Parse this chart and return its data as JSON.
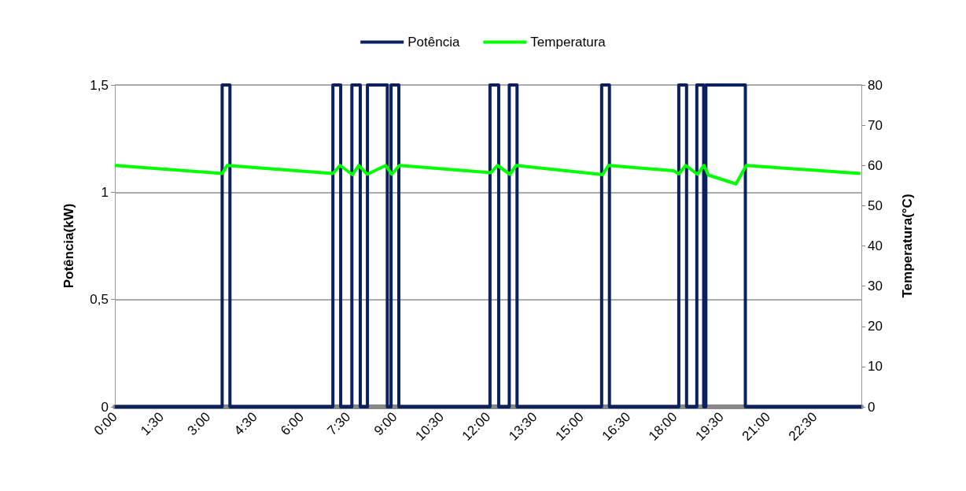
{
  "chart_data": {
    "type": "line",
    "ylabel": "Potência(kW)",
    "y2label": "Temperatura(°C)",
    "xlim": [
      0,
      24
    ],
    "xticks": [
      {
        "value": 0,
        "label": "0:00"
      },
      {
        "value": 1.5,
        "label": "1:30"
      },
      {
        "value": 3,
        "label": "3:00"
      },
      {
        "value": 4.5,
        "label": "4:30"
      },
      {
        "value": 6,
        "label": "6:00"
      },
      {
        "value": 7.5,
        "label": "7:30"
      },
      {
        "value": 9,
        "label": "9:00"
      },
      {
        "value": 10.5,
        "label": "10:30"
      },
      {
        "value": 12,
        "label": "12:00"
      },
      {
        "value": 13.5,
        "label": "13:30"
      },
      {
        "value": 15,
        "label": "15:00"
      },
      {
        "value": 16.5,
        "label": "16:30"
      },
      {
        "value": 18,
        "label": "18:00"
      },
      {
        "value": 19.5,
        "label": "19:30"
      },
      {
        "value": 21,
        "label": "21:00"
      },
      {
        "value": 22.5,
        "label": "22:30"
      }
    ],
    "ylim": [
      0,
      1.5
    ],
    "yticks": [
      0,
      {
        "value": 0.5,
        "label": "0,5"
      },
      1,
      {
        "value": 1.5,
        "label": "1,5"
      }
    ],
    "y2lim": [
      0,
      80
    ],
    "y2ticks": [
      0,
      10,
      20,
      30,
      40,
      50,
      60,
      70,
      80
    ],
    "grid": "y",
    "legend": "top",
    "marker": "none",
    "line_style": "solid",
    "series": [
      {
        "name": "Potência",
        "type": "step",
        "color": "#0b2060",
        "x": [
          0,
          3.45,
          3.7,
          7.01,
          7.26,
          7.62,
          7.89,
          8.12,
          8.76,
          8.88,
          9.13,
          12.06,
          12.34,
          12.68,
          12.93,
          15.65,
          15.9,
          18.13,
          18.38,
          18.71,
          18.93,
          19.0,
          20.27,
          24
        ],
        "values": [
          0,
          1.5,
          0,
          1.5,
          0,
          1.5,
          0,
          1.5,
          0,
          1.5,
          0,
          1.5,
          0,
          1.5,
          0,
          1.5,
          0,
          1.5,
          0,
          1.5,
          0,
          1.5,
          0,
          0
        ]
      },
      {
        "name": "Temperatura",
        "type": "line",
        "axis": "y2",
        "color": "#00ff00",
        "x": [
          0,
          3.45,
          3.61,
          7.01,
          7.24,
          7.64,
          7.84,
          8.11,
          8.71,
          8.9,
          9.15,
          12.09,
          12.3,
          12.7,
          12.9,
          15.68,
          15.87,
          17.96,
          18.13,
          18.35,
          18.73,
          18.94,
          19.08,
          19.97,
          20.3,
          23.97
        ],
        "values": [
          60,
          58,
          60,
          58,
          60,
          57.7,
          60,
          57.8,
          60,
          57.8,
          60,
          58.2,
          60,
          57.8,
          60,
          57.7,
          60,
          58.7,
          57.9,
          60,
          57.8,
          60,
          57.6,
          55.4,
          60,
          58
        ]
      }
    ]
  }
}
